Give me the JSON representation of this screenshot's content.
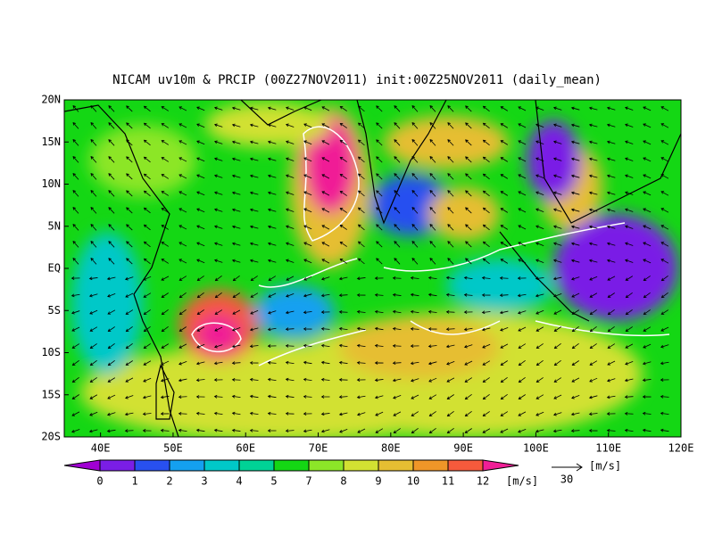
{
  "map": {
    "title": "NICAM uv10m & PRCIP (00Z27NOV2011) init:00Z25NOV2011 (daily_mean)",
    "lon_range": [
      35,
      120
    ],
    "lat_range": [
      -20,
      20
    ],
    "lon_ticks": [
      {
        "value": 40,
        "label": "40E"
      },
      {
        "value": 50,
        "label": "50E"
      },
      {
        "value": 60,
        "label": "60E"
      },
      {
        "value": 70,
        "label": "70E"
      },
      {
        "value": 80,
        "label": "80E"
      },
      {
        "value": 90,
        "label": "90E"
      },
      {
        "value": 100,
        "label": "100E"
      },
      {
        "value": 110,
        "label": "110E"
      },
      {
        "value": 120,
        "label": "120E"
      }
    ],
    "lat_ticks": [
      {
        "value": 20,
        "label": "20N"
      },
      {
        "value": 15,
        "label": "15N"
      },
      {
        "value": 10,
        "label": "10N"
      },
      {
        "value": 5,
        "label": "5N"
      },
      {
        "value": 0,
        "label": "EQ"
      },
      {
        "value": -5,
        "label": "5S"
      },
      {
        "value": -10,
        "label": "10S"
      },
      {
        "value": -15,
        "label": "15S"
      },
      {
        "value": -20,
        "label": "20S"
      }
    ],
    "colorbar": {
      "labels": [
        0,
        1,
        2,
        3,
        4,
        5,
        7,
        8,
        9,
        10,
        11,
        12
      ],
      "colors": [
        "#a000d2",
        "#7a1ee6",
        "#2850f0",
        "#14a0f0",
        "#00c8c8",
        "#00d296",
        "#14d714",
        "#8ce628",
        "#d2e132",
        "#e6be32",
        "#f09628",
        "#f55a3c",
        "#f01e96"
      ],
      "unit": "[m/s]"
    },
    "reference_vector": {
      "value": 30,
      "unit": "[m/s]"
    }
  }
}
